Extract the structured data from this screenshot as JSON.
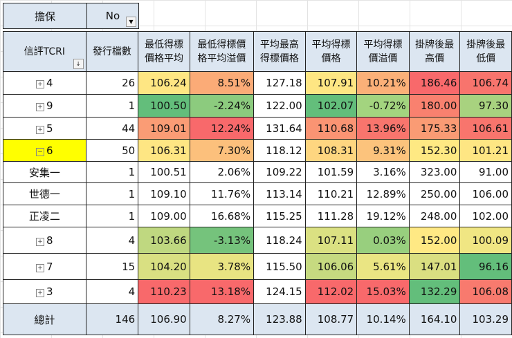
{
  "filter": {
    "label": "擔保",
    "value": "No"
  },
  "headers": [
    "信評TCRI",
    "發行檔數",
    "最低得標\n價格平均",
    "最低得標價\n格平均溢價",
    "平均最高\n得標價格",
    "平均得標\n價格",
    "平均得標\n價溢價",
    "掛牌後最\n高價",
    "掛牌後最\n低價"
  ],
  "rows": [
    {
      "label": "4",
      "expand": "plus",
      "values": [
        "26",
        "106.24",
        "8.51%",
        "127.18",
        "107.91",
        "10.21%",
        "186.46",
        "106.74"
      ],
      "colors": [
        "",
        "#fee683",
        "#fbab77",
        "",
        "#fee683",
        "#fbb078",
        "#f8696b",
        "#f8746d"
      ]
    },
    {
      "label": "9",
      "expand": "plus",
      "values": [
        "1",
        "100.50",
        "-2.24%",
        "122.00",
        "102.07",
        "-0.72%",
        "180.00",
        "97.30"
      ],
      "colors": [
        "",
        "#63be7b",
        "#8ccb7e",
        "",
        "#63be7b",
        "#a3d47f",
        "#f9816f",
        "#a8d27f"
      ]
    },
    {
      "label": "5",
      "expand": "plus",
      "values": [
        "44",
        "109.01",
        "12.24%",
        "131.64",
        "110.68",
        "13.96%",
        "175.33",
        "106.61"
      ],
      "colors": [
        "",
        "#fa9c75",
        "#f8696b",
        "",
        "#fa9473",
        "#f8756d",
        "#fa9b74",
        "#f8756d"
      ]
    },
    {
      "label": "6",
      "expand": "minus",
      "selected": true,
      "values": [
        "50",
        "106.31",
        "7.30%",
        "118.12",
        "108.31",
        "9.31%",
        "152.30",
        "101.21"
      ],
      "colors": [
        "",
        "#fee683",
        "#fcc07c",
        "",
        "#fed680",
        "#fcc37c",
        "#fee983",
        "#fee683"
      ]
    },
    {
      "label": "安集一",
      "expand": "",
      "values": [
        "1",
        "100.51",
        "2.06%",
        "109.22",
        "101.59",
        "3.16%",
        "323.00",
        "91.00"
      ],
      "colors": [
        "",
        "",
        "",
        "",
        "",
        "",
        "",
        ""
      ]
    },
    {
      "label": "世德一",
      "expand": "",
      "values": [
        "1",
        "109.10",
        "11.76%",
        "113.14",
        "110.21",
        "12.89%",
        "250.00",
        "106.00"
      ],
      "colors": [
        "",
        "",
        "",
        "",
        "",
        "",
        "",
        ""
      ]
    },
    {
      "label": "正凌二",
      "expand": "",
      "values": [
        "1",
        "109.00",
        "16.68%",
        "115.25",
        "111.28",
        "19.12%",
        "248.00",
        "102.00"
      ],
      "colors": [
        "",
        "",
        "",
        "",
        "",
        "",
        "",
        ""
      ]
    },
    {
      "label": "8",
      "expand": "plus",
      "values": [
        "4",
        "103.66",
        "-3.13%",
        "118.24",
        "107.11",
        "0.03%",
        "152.00",
        "100.09"
      ],
      "colors": [
        "",
        "#bfd880",
        "#75c37c",
        "",
        "#dbe182",
        "#98cf7e",
        "#ffe984",
        "#f0e683"
      ]
    },
    {
      "label": "7",
      "expand": "plus",
      "values": [
        "15",
        "104.20",
        "3.78%",
        "115.50",
        "106.06",
        "5.61%",
        "147.01",
        "96.16"
      ],
      "colors": [
        "",
        "#d9e082",
        "#e8e482",
        "",
        "#c6da80",
        "#eae583",
        "#dadf81",
        "#63be7b"
      ]
    },
    {
      "label": "3",
      "expand": "plus",
      "values": [
        "4",
        "110.23",
        "13.18%",
        "124.15",
        "112.02",
        "15.03%",
        "132.29",
        "106.08"
      ],
      "colors": [
        "",
        "#f8696b",
        "#f8696b",
        "",
        "#f8696b",
        "#f8696b",
        "#63be7b",
        "#f87a6e"
      ]
    }
  ],
  "total": {
    "label": "總計",
    "values": [
      "146",
      "106.90",
      "8.27%",
      "123.88",
      "108.77",
      "10.14%",
      "164.10",
      "103.29"
    ]
  }
}
